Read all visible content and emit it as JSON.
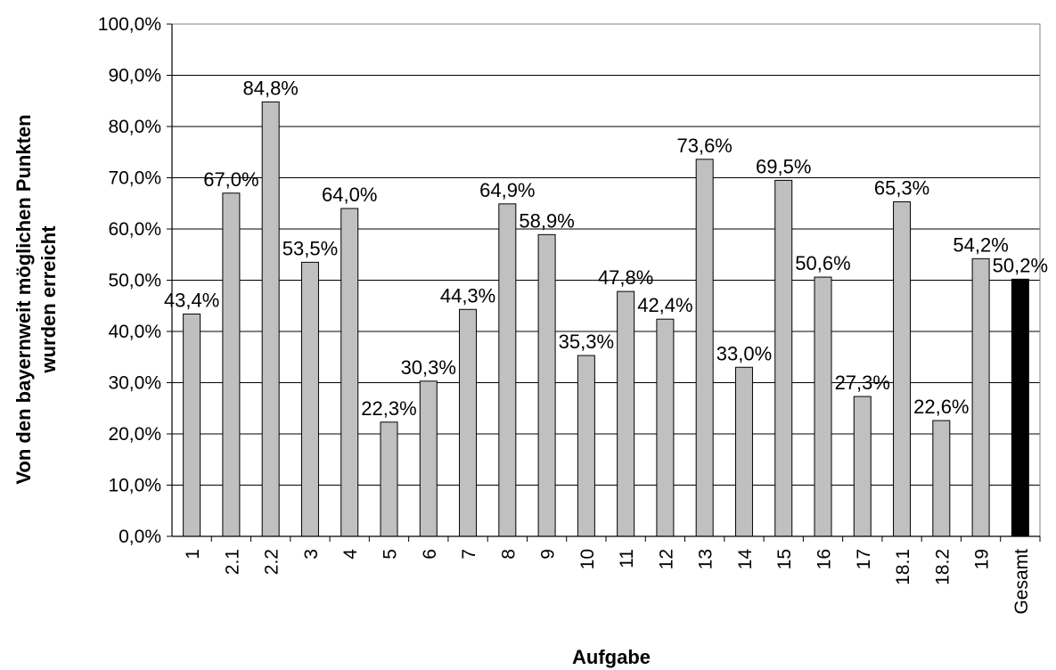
{
  "chart_data": {
    "type": "bar",
    "xlabel": "Aufgabe",
    "ylabel_line1": "Von den bayernweit möglichen Punkten",
    "ylabel_line2": "wurden erreicht",
    "ylim": [
      0,
      100
    ],
    "ytick_labels": [
      "0,0%",
      "10,0%",
      "20,0%",
      "30,0%",
      "40,0%",
      "50,0%",
      "60,0%",
      "70,0%",
      "80,0%",
      "90,0%",
      "100,0%"
    ],
    "categories": [
      "1",
      "2.1",
      "2.2",
      "3",
      "4",
      "5",
      "6",
      "7",
      "8",
      "9",
      "10",
      "11",
      "12",
      "13",
      "14",
      "15",
      "16",
      "17",
      "18.1",
      "18.2",
      "19",
      "Gesamt"
    ],
    "values": [
      43.4,
      67.0,
      84.8,
      53.5,
      64.0,
      22.3,
      30.3,
      44.3,
      64.9,
      58.9,
      35.3,
      47.8,
      42.4,
      73.6,
      33.0,
      69.5,
      50.6,
      27.3,
      65.3,
      22.6,
      54.2,
      50.2
    ],
    "value_labels": [
      "43,4%",
      "67,0%",
      "84,8%",
      "53,5%",
      "64,0%",
      "22,3%",
      "30,3%",
      "44,3%",
      "64,9%",
      "58,9%",
      "35,3%",
      "47,8%",
      "42,4%",
      "73,6%",
      "33,0%",
      "69,5%",
      "50,6%",
      "27,3%",
      "65,3%",
      "22,6%",
      "54,2%",
      "50,2%"
    ],
    "bar_color": "#c0c0c0",
    "highlight_color": "#000000",
    "highlight_category": "Gesamt",
    "grid": true,
    "legend": false
  }
}
